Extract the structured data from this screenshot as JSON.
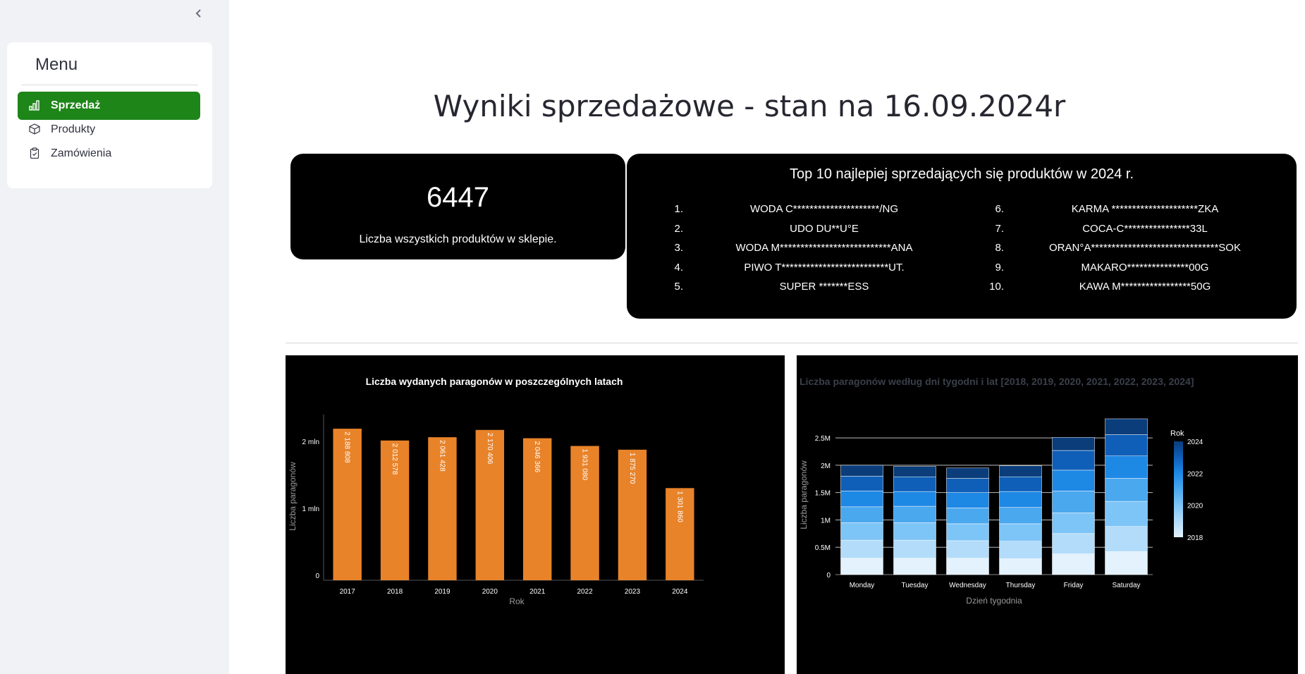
{
  "sidebar": {
    "collapse_icon": "chevron-left-icon",
    "menu_title": "Menu",
    "items": [
      {
        "label": "Sprzedaż",
        "icon": "bar-chart-icon",
        "active": true
      },
      {
        "label": "Produkty",
        "icon": "box-icon",
        "active": false
      },
      {
        "label": "Zamówienia",
        "icon": "clipboard-check-icon",
        "active": false
      }
    ],
    "accent_color": "#1e8519"
  },
  "main": {
    "title": "Wyniki sprzedażowe - stan na 16.09.2024r",
    "kpi": {
      "value": "6447",
      "label": "Liczba wszystkich produktów w sklepie."
    },
    "top_products": {
      "title": "Top 10 najlepiej sprzedających się produktów w 2024 r.",
      "items": [
        {
          "rank": "1.",
          "name": "WODA C*********************/NG"
        },
        {
          "rank": "2.",
          "name": "UDO DU**U°E"
        },
        {
          "rank": "3.",
          "name": "WODA M***************************ANA"
        },
        {
          "rank": "4.",
          "name": "PIWO T**************************UT."
        },
        {
          "rank": "5.",
          "name": "SUPER *******ESS"
        },
        {
          "rank": "6.",
          "name": "KARMA *********************ZKA"
        },
        {
          "rank": "7.",
          "name": "COCA-C****************33L"
        },
        {
          "rank": "8.",
          "name": "ORAN°A*******************************SOK"
        },
        {
          "rank": "9.",
          "name": "MAKARO***************00G"
        },
        {
          "rank": "10.",
          "name": "KAWA M*****************50G"
        }
      ]
    }
  },
  "chart_data": [
    {
      "type": "bar",
      "title": "Liczba wydanych paragonów w poszczególnych latach",
      "xlabel": "Rok",
      "ylabel": "Liczba paragonów",
      "categories": [
        "2017",
        "2018",
        "2019",
        "2020",
        "2021",
        "2022",
        "2023",
        "2024"
      ],
      "values": [
        2188808,
        2012578,
        2061428,
        2170406,
        2046366,
        1931080,
        1875270,
        1301860
      ],
      "data_labels": [
        "2 188 808",
        "2 012 578",
        "2 061 428",
        "2 170 406",
        "2 046 366",
        "1 931 080",
        "1 875 270",
        "1 301 860"
      ],
      "yticks": [
        {
          "value": 0,
          "label": "0"
        },
        {
          "value": 1000000,
          "label": "1 mln"
        },
        {
          "value": 2000000,
          "label": "2 mln"
        }
      ],
      "ylim": [
        0,
        2400000
      ],
      "bar_color": "#e8832a",
      "grid": false
    },
    {
      "type": "bar",
      "stacked": true,
      "title": "Liczba paragonów według dni tygodni i lat [2018, 2019, 2020, 2021, 2022, 2023, 2024]",
      "xlabel": "Dzień tygodnia",
      "ylabel": "Liczba paragonów",
      "categories": [
        "Monday",
        "Tuesday",
        "Wednesday",
        "Thursday",
        "Friday",
        "Saturday"
      ],
      "series": [
        {
          "name": "2018",
          "color": "#e3f2fd",
          "values": [
            300000,
            300000,
            300000,
            290000,
            380000,
            420000
          ]
        },
        {
          "name": "2019",
          "color": "#b3dcfa",
          "values": [
            330000,
            330000,
            320000,
            320000,
            370000,
            460000
          ]
        },
        {
          "name": "2020",
          "color": "#7ec5f7",
          "values": [
            320000,
            320000,
            310000,
            320000,
            380000,
            460000
          ]
        },
        {
          "name": "2021",
          "color": "#4aa8ef",
          "values": [
            290000,
            300000,
            290000,
            300000,
            400000,
            420000
          ]
        },
        {
          "name": "2022",
          "color": "#1e88e5",
          "values": [
            290000,
            270000,
            280000,
            290000,
            380000,
            410000
          ]
        },
        {
          "name": "2023",
          "color": "#0f5fb8",
          "values": [
            270000,
            270000,
            260000,
            270000,
            360000,
            390000
          ]
        },
        {
          "name": "2024",
          "color": "#0a3d7a",
          "values": [
            200000,
            190000,
            190000,
            200000,
            240000,
            290000
          ]
        }
      ],
      "yticks": [
        {
          "value": 0,
          "label": "0"
        },
        {
          "value": 500000,
          "label": "0.5M"
        },
        {
          "value": 1000000,
          "label": "1M"
        },
        {
          "value": 1500000,
          "label": "1.5M"
        },
        {
          "value": 2000000,
          "label": "2M"
        },
        {
          "value": 2500000,
          "label": "2.5M"
        }
      ],
      "ylim": [
        0,
        2850000
      ],
      "grid": true,
      "legend": {
        "title": "Rok",
        "placement": "right",
        "ticks": [
          "2024",
          "2022",
          "2020",
          "2018"
        ]
      }
    }
  ]
}
